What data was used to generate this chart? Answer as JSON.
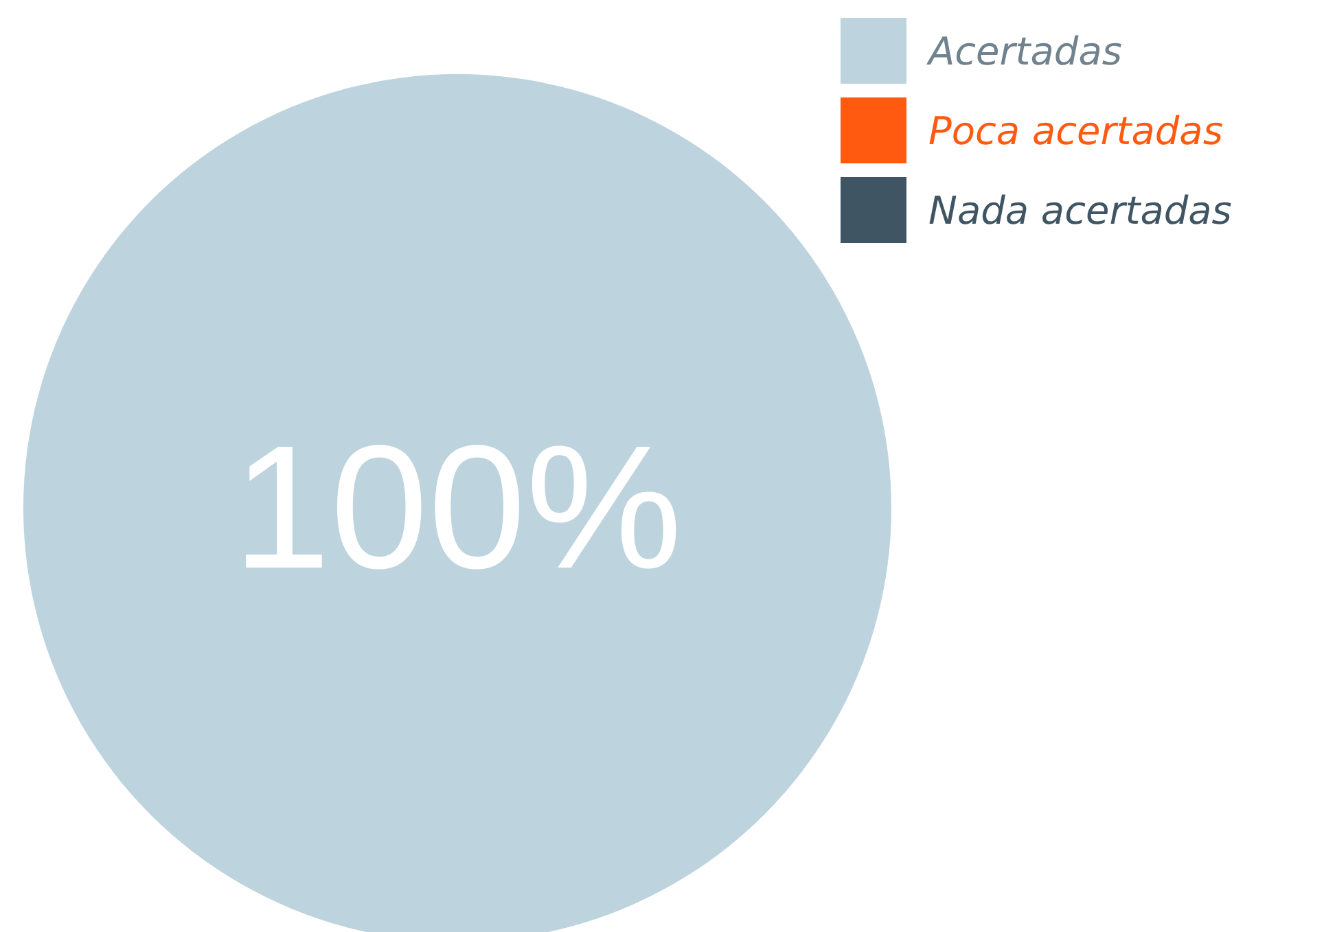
{
  "chart_data": {
    "type": "pie",
    "categories": [
      "Acertadas",
      "Poca acertadas",
      "Nada acertadas"
    ],
    "values": [
      100,
      0,
      0
    ],
    "colors": [
      "#bdd3dd",
      "#ff5a10",
      "#3f5563"
    ],
    "value_labels": [
      "100%",
      null,
      null
    ],
    "legend": "top right"
  }
}
